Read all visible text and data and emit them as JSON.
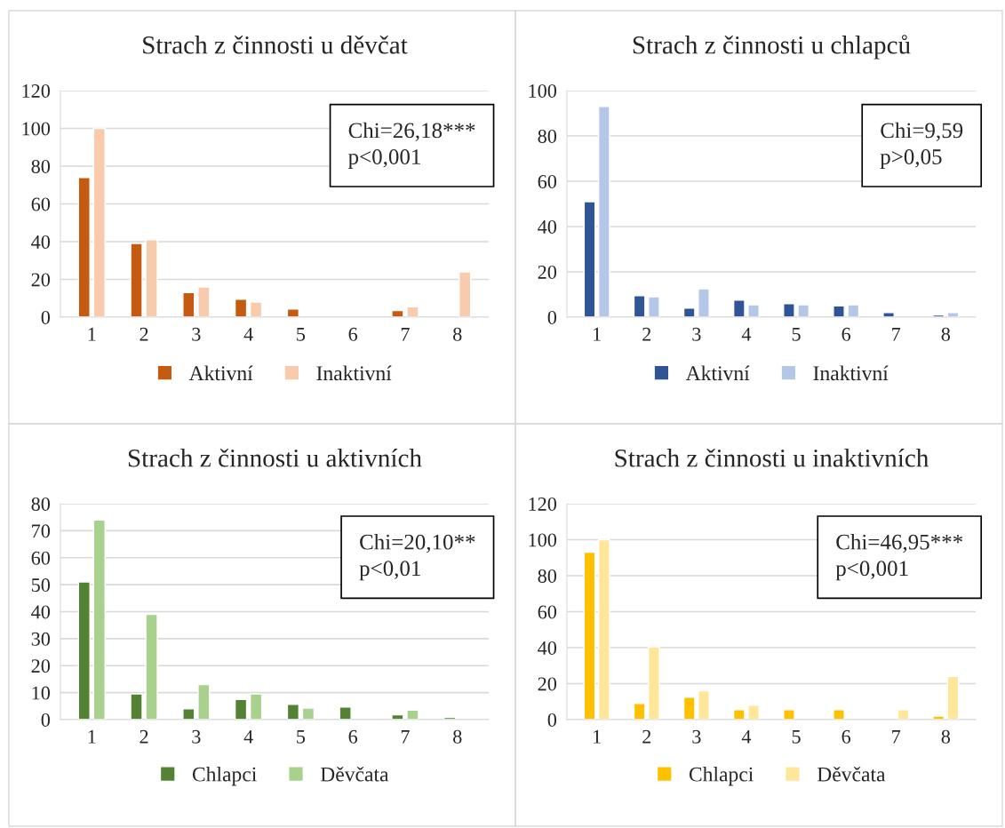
{
  "chart_data": [
    {
      "type": "bar",
      "title": "Strach z činnosti u děvčat",
      "categories": [
        "1",
        "2",
        "3",
        "4",
        "5",
        "6",
        "7",
        "8"
      ],
      "series": [
        {
          "name": "Aktivní",
          "color": "#c55a11",
          "values": [
            74,
            39,
            13,
            9.5,
            4.3,
            null,
            3.5,
            null
          ]
        },
        {
          "name": "Inaktivní",
          "color": "#f8cbad",
          "values": [
            100,
            41,
            16,
            8,
            null,
            null,
            5.5,
            24
          ]
        }
      ],
      "ylim": [
        0,
        120
      ],
      "yticks": [
        0,
        20,
        40,
        60,
        80,
        100,
        120
      ],
      "grid": "y",
      "legend": "bottom",
      "annotations": [
        "Chi=26,18***\np<0,001"
      ]
    },
    {
      "type": "bar",
      "title": "Strach z činnosti u chlapců",
      "categories": [
        "1",
        "2",
        "3",
        "4",
        "5",
        "6",
        "7",
        "8"
      ],
      "series": [
        {
          "name": "Aktivní",
          "color": "#2f5597",
          "values": [
            51,
            9.5,
            4,
            7.5,
            6,
            5,
            2,
            1
          ]
        },
        {
          "name": "Inaktivní",
          "color": "#b4c7e7",
          "values": [
            93,
            9,
            12.5,
            5.5,
            5.5,
            5.5,
            null,
            2
          ]
        }
      ],
      "ylim": [
        0,
        100
      ],
      "yticks": [
        0,
        20,
        40,
        60,
        80,
        100
      ],
      "grid": "y",
      "legend": "bottom",
      "annotations": [
        "Chi=9,59\np>0,05"
      ]
    },
    {
      "type": "bar",
      "title": "Strach z činnosti u aktivních",
      "categories": [
        "1",
        "2",
        "3",
        "4",
        "5",
        "6",
        "7",
        "8"
      ],
      "series": [
        {
          "name": "Chlapci",
          "color": "#548235",
          "values": [
            51,
            9.5,
            4,
            7.5,
            5.7,
            4.7,
            1.8,
            0.8
          ]
        },
        {
          "name": "Děvčata",
          "color": "#a9d18e",
          "values": [
            74,
            39,
            13,
            9.5,
            4.3,
            null,
            3.5,
            null
          ]
        }
      ],
      "ylim": [
        0,
        80
      ],
      "yticks": [
        0,
        10,
        20,
        30,
        40,
        50,
        60,
        70,
        80
      ],
      "grid": "y",
      "legend": "bottom",
      "annotations": [
        "Chi=20,10**\np<0,01"
      ]
    },
    {
      "type": "bar",
      "title": "Strach z činnosti u inaktivních",
      "categories": [
        "1",
        "2",
        "3",
        "4",
        "5",
        "6",
        "7",
        "8"
      ],
      "series": [
        {
          "name": "Chlapci",
          "color": "#ffc000",
          "values": [
            93,
            9,
            12.5,
            5.5,
            5.5,
            5.5,
            null,
            2
          ]
        },
        {
          "name": "Děvčata",
          "color": "#ffe699",
          "values": [
            100,
            40.5,
            16,
            8,
            null,
            null,
            5.5,
            24
          ]
        }
      ],
      "ylim": [
        0,
        120
      ],
      "yticks": [
        0,
        20,
        40,
        60,
        80,
        100,
        120
      ],
      "grid": "y",
      "legend": "bottom",
      "annotations": [
        "Chi=46,95***\np<0,001"
      ]
    }
  ]
}
